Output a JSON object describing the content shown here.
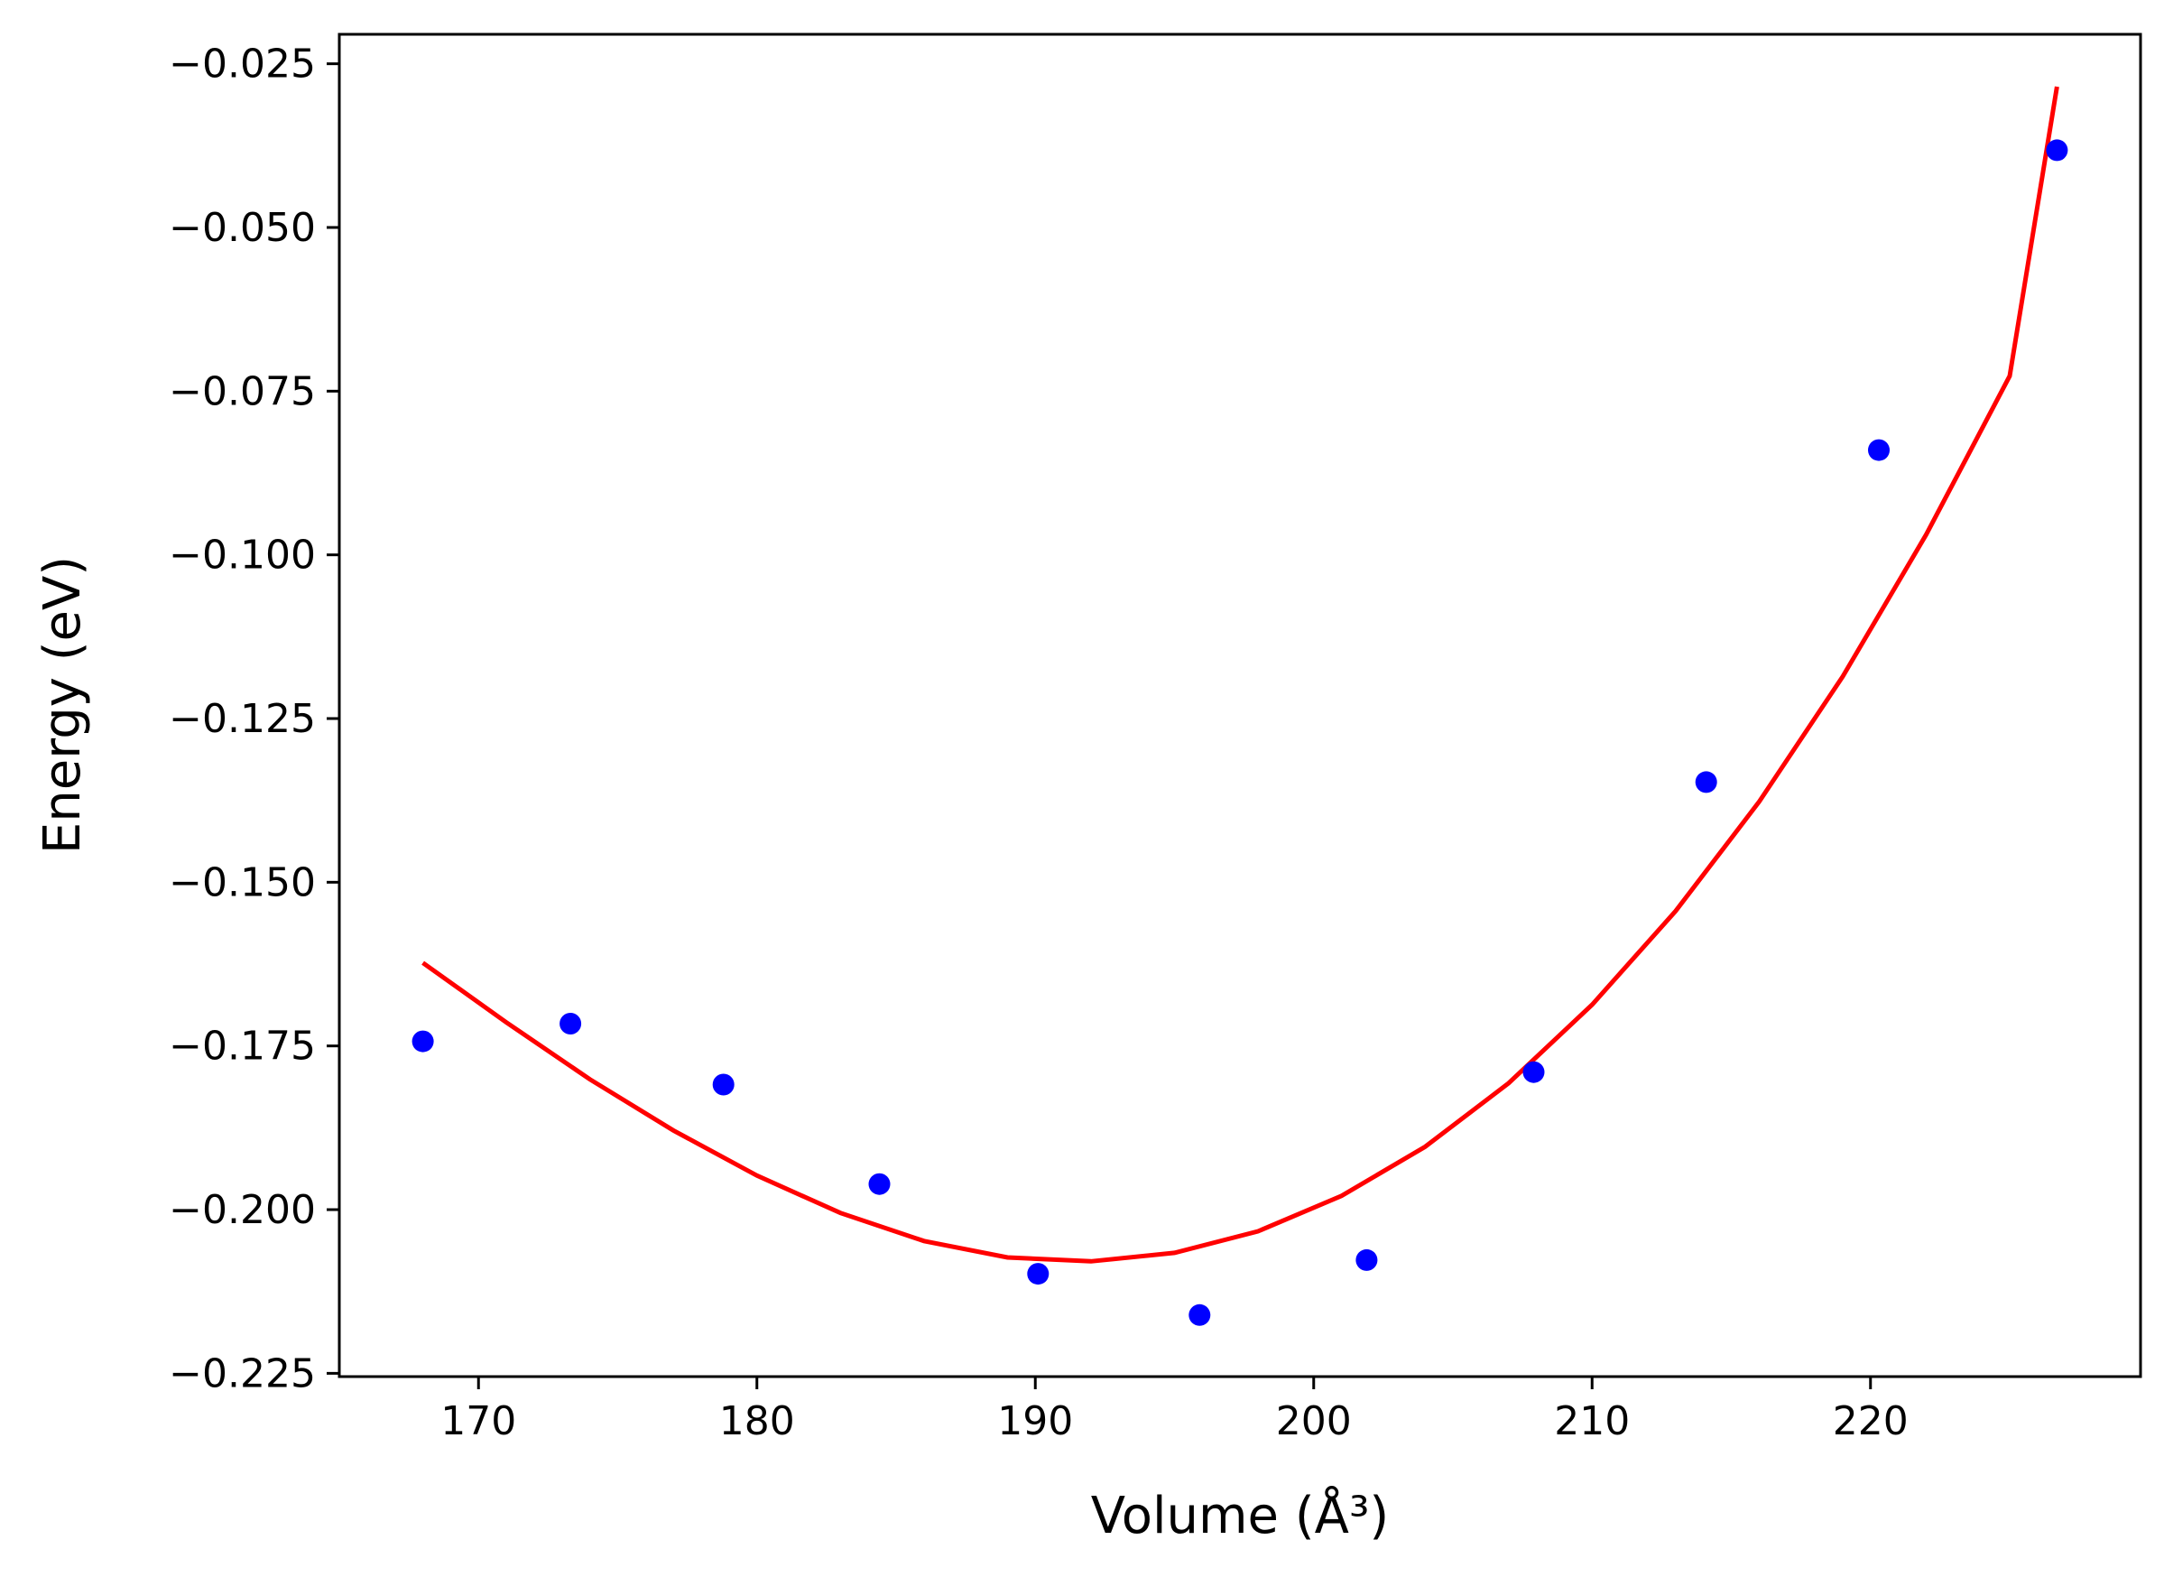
{
  "chart_data": {
    "type": "scatter",
    "title": "",
    "xlabel": "Volume (Å³)",
    "ylabel": "Energy (eV)",
    "xlim": [
      165.0,
      229.7
    ],
    "ylim": [
      -0.2255,
      -0.0205
    ],
    "xticks": [
      170,
      180,
      190,
      200,
      210,
      220
    ],
    "xtick_labels": [
      "170",
      "180",
      "190",
      "200",
      "210",
      "220"
    ],
    "yticks": [
      -0.225,
      -0.2,
      -0.175,
      -0.15,
      -0.125,
      -0.1,
      -0.075,
      -0.05,
      -0.025
    ],
    "ytick_labels": [
      "−0.225",
      "−0.200",
      "−0.175",
      "−0.150",
      "−0.125",
      "−0.100",
      "−0.075",
      "−0.050",
      "−0.025"
    ],
    "grid": false,
    "legend": false,
    "series": [
      {
        "kind": "points",
        "color": "#0000ff",
        "x": [
          168.0,
          173.3,
          178.8,
          184.4,
          190.1,
          195.9,
          201.9,
          207.9,
          214.1,
          220.3,
          226.7
        ],
        "y": [
          -0.1743,
          -0.1716,
          -0.1809,
          -0.1961,
          -0.2098,
          -0.2161,
          -0.2077,
          -0.179,
          -0.1347,
          -0.084,
          -0.0382
        ]
      },
      {
        "kind": "fit",
        "color": "#ff0000",
        "x": [
          168.0,
          171.0,
          174.0,
          177.0,
          180.0,
          183.0,
          186.0,
          189.0,
          192.0,
          195.0,
          198.0,
          201.0,
          204.0,
          207.0,
          210.0,
          213.0,
          216.0,
          219.0,
          222.0,
          225.0,
          226.7
        ],
        "y": [
          -0.1623,
          -0.1714,
          -0.1801,
          -0.1879,
          -0.1948,
          -0.2005,
          -0.2048,
          -0.2073,
          -0.2079,
          -0.2066,
          -0.2033,
          -0.1979,
          -0.1904,
          -0.1807,
          -0.1687,
          -0.1544,
          -0.1377,
          -0.1186,
          -0.0969,
          -0.0727,
          -0.0285
        ]
      }
    ]
  }
}
